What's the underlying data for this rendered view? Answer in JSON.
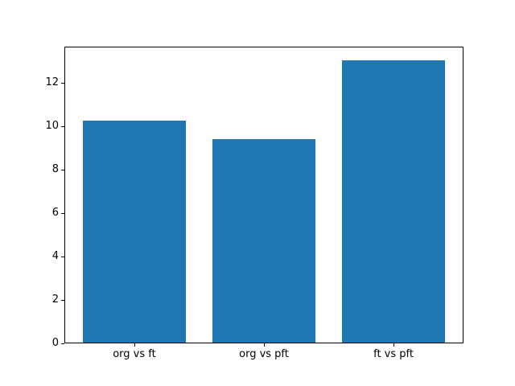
{
  "chart_data": {
    "type": "bar",
    "title": "",
    "xlabel": "",
    "ylabel": "",
    "categories": [
      "org vs ft",
      "org vs pft",
      "ft vs pft"
    ],
    "values": [
      10.2,
      9.35,
      13.0
    ],
    "yticks": [
      0,
      2,
      4,
      6,
      8,
      10,
      12
    ],
    "ylim": [
      0,
      13.65
    ],
    "bar_width_fraction": 0.8,
    "bar_color": "#1f77b4",
    "spine_color": "#000000",
    "background_color": "#ffffff",
    "grid": false,
    "legend": false
  }
}
